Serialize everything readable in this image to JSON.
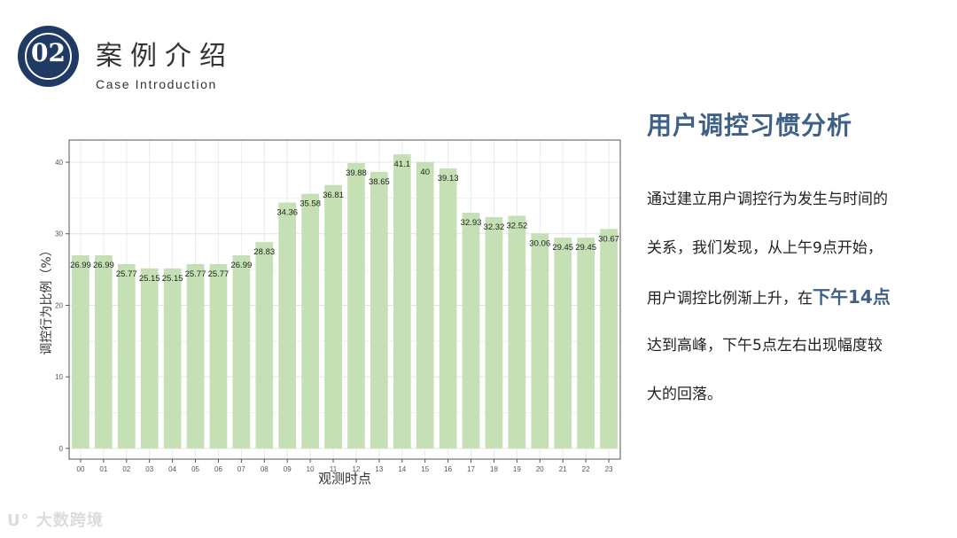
{
  "section": {
    "number": "02",
    "title": "案例介绍",
    "subtitle": "Case Introduction"
  },
  "headline": "用户调控习惯分析",
  "body": {
    "line1": "通过建立用户调控行为发生与时间的",
    "line2": "关系，我们发现，从上午9点开始，",
    "line3_prefix": "用户调控比例渐上升，在",
    "line3_highlight": "下午14点",
    "line4": "达到高峰，下午5点左右出现幅度较",
    "line5": "大的回落。"
  },
  "watermark": "大数跨境",
  "colors": {
    "accent": "#3f6185",
    "badge": "#1f3a63",
    "bar": "#c5e0b4"
  },
  "chart_data": {
    "type": "bar",
    "categories": [
      "00",
      "01",
      "02",
      "03",
      "04",
      "05",
      "06",
      "07",
      "08",
      "09",
      "10",
      "11",
      "12",
      "13",
      "14",
      "15",
      "16",
      "17",
      "18",
      "19",
      "20",
      "21",
      "22",
      "23"
    ],
    "values": [
      26.99,
      26.99,
      25.77,
      25.15,
      25.15,
      25.77,
      25.77,
      26.99,
      28.83,
      34.36,
      35.58,
      36.81,
      39.88,
      38.65,
      41.1,
      40,
      39.13,
      32.93,
      32.32,
      32.52,
      30.06,
      29.45,
      29.45,
      30.67
    ],
    "value_labels": [
      "26.99",
      "26.99",
      "25.77",
      "25.15",
      "25.15",
      "25.77",
      "25.77",
      "26.99",
      "28.83",
      "34.36",
      "35.58",
      "36.81",
      "39.88",
      "38.65",
      "41.1",
      "40",
      "39.13",
      "32.93",
      "32.32",
      "32.52",
      "30.06",
      "29.45",
      "29.45",
      "30.67"
    ],
    "xlabel": "观测时点",
    "ylabel": "调控行为比例（%）",
    "yticks": [
      "0",
      "10",
      "20",
      "30",
      "40"
    ],
    "ylim": [
      -1.5,
      43.1
    ],
    "grid": true,
    "legend": "none"
  }
}
